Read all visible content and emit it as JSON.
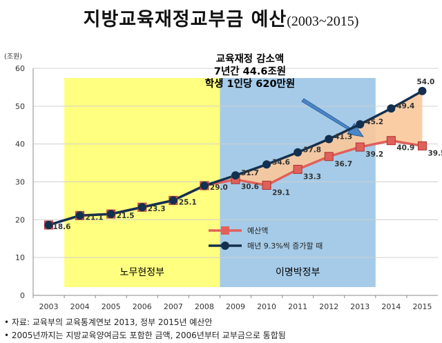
{
  "title": "지방교육재정교부금 예산",
  "subtitle": "(2003~2015)",
  "footnotes": [
    "• 자료: 교육부의 교육통계연보 2013, 정부 2015년 예산안",
    "• 2005년까지는 지방교육양여금도 포함한 금액, 2006년부터 교부금으로 통합됨"
  ],
  "annotation": {
    "lines": [
      "교육재정 감소액",
      "7년간 44.6조원",
      "학생 1인당 620만원"
    ]
  },
  "periods": [
    {
      "label": "노무현정부",
      "color": "#ffff80"
    },
    {
      "label": "이명박정부",
      "color": "#a6cbe8"
    }
  ],
  "colors": {
    "budget": "#e0605a",
    "growth": "#13304f",
    "gap_fill": "#fbc89a",
    "grid": "#d0d0d0"
  },
  "chart_data": {
    "type": "line",
    "x": [
      "2003",
      "2004",
      "2005",
      "2006",
      "2007",
      "2008",
      "2009",
      "2010",
      "2011",
      "2012",
      "2013",
      "2014",
      "2015"
    ],
    "ylabel": "(조원)",
    "ylim": [
      0,
      60
    ],
    "yticks": [
      0,
      10,
      20,
      30,
      40,
      50,
      60
    ],
    "grid": true,
    "legend_position": "lower-right",
    "series": [
      {
        "name": "예산액",
        "marker": "square",
        "values": [
          18.6,
          21.1,
          21.5,
          23.3,
          25.1,
          29.0,
          30.6,
          29.1,
          33.3,
          36.7,
          39.2,
          40.9,
          39.5
        ],
        "labels": [
          "18.6",
          "21.1",
          "21.5",
          "23.3",
          "25.1",
          "29.0",
          "30.6",
          "29.1",
          "33.3",
          "36.7",
          "39.2",
          "40.9",
          "39.5"
        ]
      },
      {
        "name": "매년 9.3%씩 증가할 때",
        "marker": "circle",
        "values": [
          18.6,
          21.1,
          21.5,
          23.3,
          25.1,
          29.0,
          31.7,
          34.6,
          37.8,
          41.3,
          45.2,
          49.4,
          54.0
        ],
        "labels": [
          "",
          "",
          "",
          "",
          "",
          "",
          "31.7",
          "34.6",
          "37.8",
          "41.3",
          "45.2",
          "49.4",
          "54.0"
        ]
      }
    ]
  }
}
